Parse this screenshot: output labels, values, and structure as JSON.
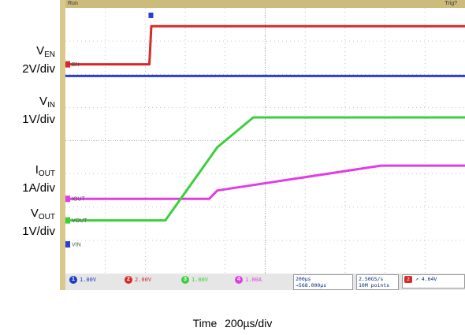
{
  "labels": {
    "ven_main": "V",
    "ven_sub": "EN",
    "ven_scale": "2V/div",
    "vin_main": "V",
    "vin_sub": "IN",
    "vin_scale": "1V/div",
    "iout_main": "I",
    "iout_sub": "OUT",
    "iout_scale": "1A/div",
    "vout_main": "V",
    "vout_sub": "OUT",
    "vout_scale": "1V/div"
  },
  "time_label": "Time    200µs/div",
  "scope": {
    "run_status": "Run",
    "trig_status": "Trig?",
    "channels": [
      {
        "num": "1",
        "value": "1.00V",
        "color": "#1f3dbf"
      },
      {
        "num": "2",
        "value": "2.00V",
        "color": "#d62a2a"
      },
      {
        "num": "3",
        "value": "1.00V",
        "color": "#3ccf3c"
      },
      {
        "num": "4",
        "value": "1.00A",
        "color": "#e23de2"
      }
    ],
    "timebase": "200µs",
    "trigger_pos": "→568.000µs",
    "sample_rate": "2.50GS/s",
    "record_length": "10M points",
    "trigger_channel": "2",
    "trigger_level": "4.64V",
    "trace_tags": [
      "EN",
      "IOUT",
      "VOUT",
      "VIN"
    ]
  },
  "chart_data": {
    "type": "line",
    "x_unit": "µs",
    "xlim": [
      0,
      2000
    ],
    "y_unit": "div",
    "ylim": [
      -4,
      4
    ],
    "series": [
      {
        "name": "EN",
        "color": "#d62a2a",
        "x": [
          0,
          420,
          430,
          2000
        ],
        "y": [
          2.3,
          2.3,
          3.45,
          3.45
        ]
      },
      {
        "name": "VIN",
        "color": "#2b3fd6",
        "x": [
          0,
          2000
        ],
        "y": [
          1.95,
          1.95
        ]
      },
      {
        "name": "IOUT",
        "color": "#e23de2",
        "x": [
          0,
          720,
          760,
          1580,
          2000
        ],
        "y": [
          -1.75,
          -1.75,
          -1.5,
          -0.75,
          -0.75
        ]
      },
      {
        "name": "VOUT",
        "color": "#3ccf3c",
        "x": [
          0,
          500,
          760,
          940,
          2000
        ],
        "y": [
          -2.4,
          -2.4,
          -0.2,
          0.7,
          0.7
        ]
      }
    ]
  }
}
